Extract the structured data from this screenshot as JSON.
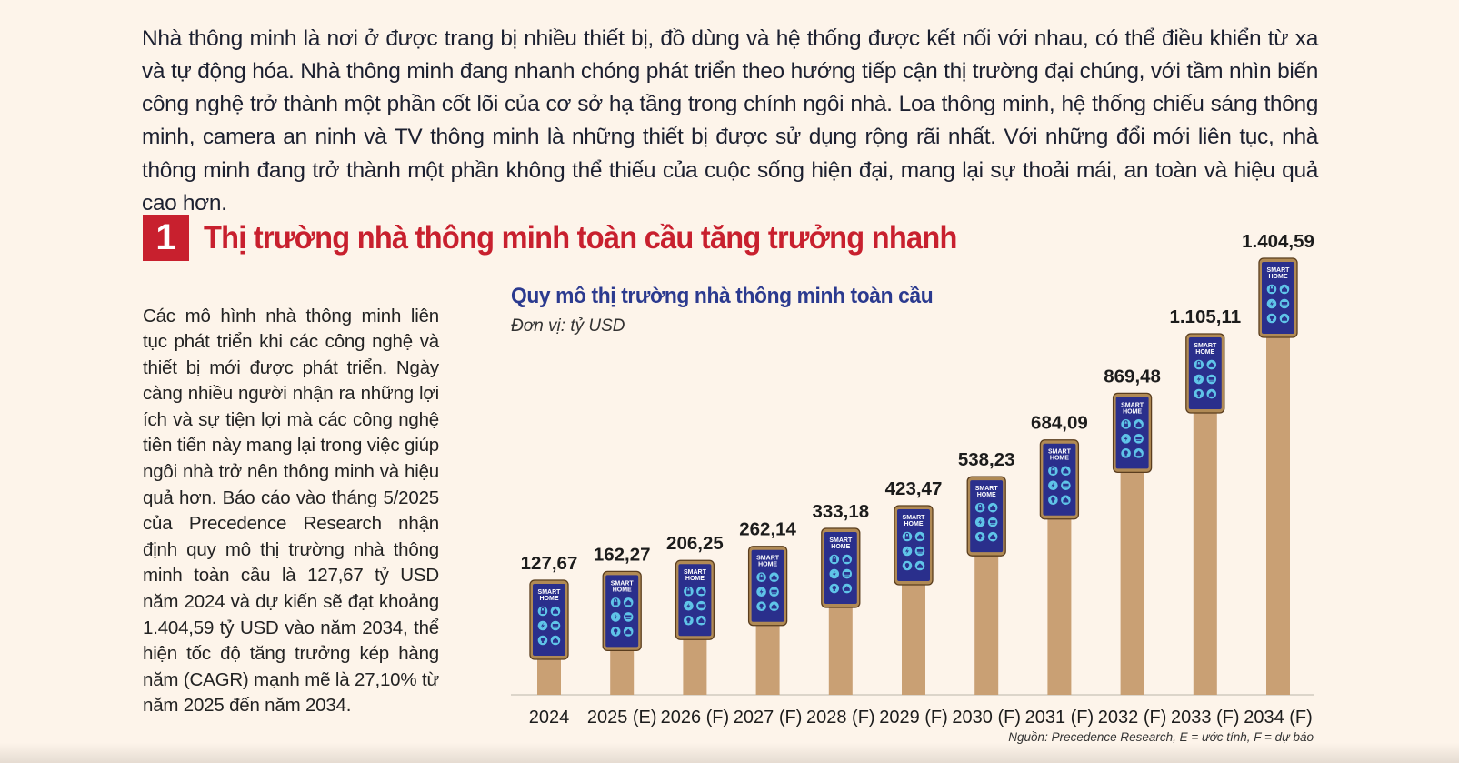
{
  "intro": {
    "text": "Nhà thông minh là nơi ở được trang bị nhiều thiết bị, đồ dùng và hệ thống được kết nối với nhau, có thể điều khiển từ xa và tự động hóa. Nhà thông minh đang nhanh chóng phát triển theo hướng tiếp cận thị trường đại chúng, với tầm nhìn biến công nghệ trở thành một phần cốt lõi của cơ sở hạ tầng trong chính ngôi nhà. Loa thông minh, hệ thống chiếu sáng thông minh, camera an ninh và TV thông minh là những thiết bị được sử dụng rộng rãi nhất. Với những đổi mới liên tục, nhà thông minh đang trở thành một phần không thể thiếu của cuộc sống hiện đại, mang lại sự thoải mái, an toàn và hiệu quả cao hơn."
  },
  "section": {
    "number": "1",
    "title": "Thị trường nhà thông minh toàn cầu tăng trưởng nhanh",
    "body": "Các mô hình nhà thông minh liên tục phát triển khi các công nghệ và thiết bị mới được phát triển. Ngày càng nhiều người nhận ra những lợi ích và sự tiện lợi mà các công nghệ tiên tiến này mang lại trong việc giúp ngôi nhà trở nên thông minh và hiệu quả hơn. Báo cáo vào tháng 5/2025 của Precedence Research nhận định quy mô thị trường nhà thông minh toàn cầu là 127,67 tỷ USD năm 2024 và dự kiến sẽ đạt khoảng 1.404,59 tỷ USD vào năm 2034, thể hiện tốc độ tăng trưởng kép hàng năm (CAGR) mạnh mẽ là 27,10% từ năm 2025 đến năm 2034."
  },
  "colors": {
    "accent_red": "#c8202e",
    "title_blue": "#2b3a8f",
    "bar_tan": "#c9a074",
    "phone_screen": "#2a2f8c",
    "phone_icon": "#5fc4e8",
    "background": "#fdf4ea"
  },
  "icons": [
    "lock-icon",
    "home-icon",
    "lightning-icon",
    "air-conditioner-icon",
    "bulb-icon",
    "house-icon"
  ],
  "chart_data": {
    "type": "bar",
    "title": "Quy mô thị trường nhà thông minh toàn cầu",
    "unit": "Đơn vị: tỷ USD",
    "source": "Nguồn: Precedence Research, E = ước tính, F = dự báo",
    "phone_label_line1": "SMART",
    "phone_label_line2": "HOME",
    "categories": [
      "2024",
      "2025 (E)",
      "2026 (F)",
      "2027 (F)",
      "2028 (F)",
      "2029 (F)",
      "2030 (F)",
      "2031 (F)",
      "2032 (F)",
      "2033 (F)",
      "2034 (F)"
    ],
    "values": [
      127.67,
      162.27,
      206.25,
      262.14,
      333.18,
      423.47,
      538.23,
      684.09,
      869.48,
      1105.11,
      1404.59
    ],
    "value_labels": [
      "127,67",
      "162,27",
      "206,25",
      "262,14",
      "333,18",
      "423,47",
      "538,23",
      "684,09",
      "869,48",
      "1.105,11",
      "1.404,59"
    ],
    "ylim": [
      0,
      1404.59
    ],
    "grid": false,
    "legend": "none"
  }
}
